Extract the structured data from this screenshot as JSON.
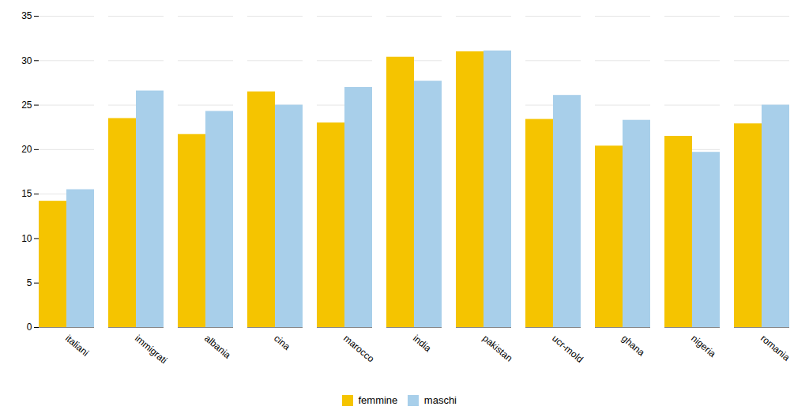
{
  "chart_data": {
    "type": "bar",
    "categories": [
      "italiani",
      "immigrati",
      "albania",
      "cina",
      "marocco",
      "india",
      "pakistan",
      "ucr-mold",
      "ghana",
      "nigeria",
      "romania"
    ],
    "series": [
      {
        "name": "femmine",
        "color": "#F5C400",
        "values": [
          14.2,
          23.5,
          21.7,
          26.5,
          23.0,
          30.4,
          31.0,
          23.4,
          20.4,
          21.5,
          22.9
        ]
      },
      {
        "name": "maschi",
        "color": "#A8CFEA",
        "values": [
          15.5,
          26.6,
          24.3,
          25.0,
          27.0,
          27.7,
          31.1,
          26.1,
          23.3,
          19.7,
          25.0
        ]
      }
    ],
    "ylim": [
      0,
      35
    ],
    "yticks": [
      0,
      5,
      10,
      15,
      20,
      25,
      30,
      35
    ],
    "grid": true,
    "legend": "bottom"
  }
}
